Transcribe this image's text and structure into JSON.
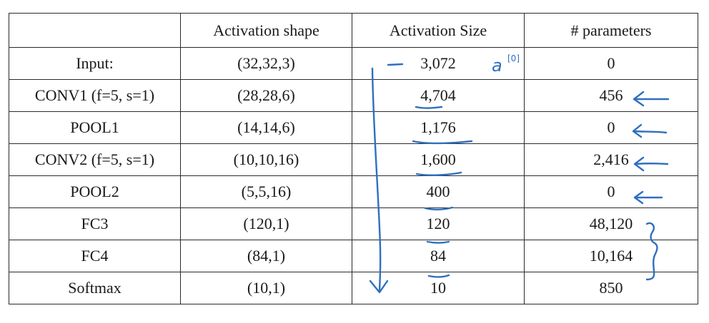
{
  "table": {
    "headers": [
      "",
      "Activation shape",
      "Activation Size",
      "# parameters"
    ],
    "rows": [
      {
        "layer": "Input:",
        "shape": "(32,32,3)",
        "size": "3,072",
        "params": "0"
      },
      {
        "layer": "CONV1 (f=5, s=1)",
        "shape": "(28,28,6)",
        "size": "4,704",
        "params": "456"
      },
      {
        "layer": "POOL1",
        "shape": "(14,14,6)",
        "size": "1,176",
        "params": "0"
      },
      {
        "layer": "CONV2  (f=5, s=1)",
        "shape": "(10,10,16)",
        "size": "1,600",
        "params": "2,416"
      },
      {
        "layer": "POOL2",
        "shape": "(5,5,16)",
        "size": "400",
        "params": "0"
      },
      {
        "layer": "FC3",
        "shape": "(120,1)",
        "size": "120",
        "params": "48,120"
      },
      {
        "layer": "FC4",
        "shape": "(84,1)",
        "size": "84",
        "params": "10,164"
      },
      {
        "layer": "Softmax",
        "shape": "(10,1)",
        "size": "10",
        "params": "850"
      }
    ]
  },
  "annotations": {
    "input_note_base": "a",
    "input_note_superscript": "[0]",
    "ink_color": "#2f6fc0"
  }
}
